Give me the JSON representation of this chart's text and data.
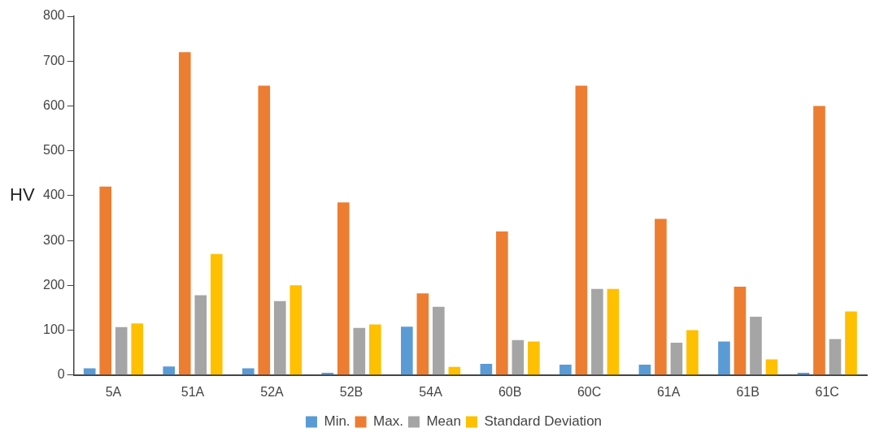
{
  "chart_data": {
    "type": "bar",
    "ylabel": "HV",
    "categories": [
      "5A",
      "51A",
      "52A",
      "52B",
      "54A",
      "60B",
      "60C",
      "61A",
      "61B",
      "61C"
    ],
    "series": [
      {
        "name": "Min.",
        "color": "#5b9bd5",
        "values": [
          15,
          19,
          15,
          5,
          108,
          25,
          23,
          23,
          75,
          5
        ]
      },
      {
        "name": "Max.",
        "color": "#ed7d31",
        "values": [
          420,
          720,
          645,
          385,
          182,
          320,
          645,
          348,
          197,
          600
        ]
      },
      {
        "name": "Mean",
        "color": "#a5a5a5",
        "values": [
          107,
          178,
          165,
          105,
          152,
          78,
          192,
          72,
          130,
          80
        ]
      },
      {
        "name": "Standard Deviation",
        "color": "#ffc000",
        "values": [
          115,
          270,
          200,
          113,
          18,
          75,
          192,
          100,
          35,
          142
        ]
      }
    ],
    "ylim": [
      0,
      800
    ],
    "yticks": [
      0,
      100,
      200,
      300,
      400,
      500,
      600,
      700,
      800
    ],
    "grid": false,
    "legend": "bottom"
  }
}
